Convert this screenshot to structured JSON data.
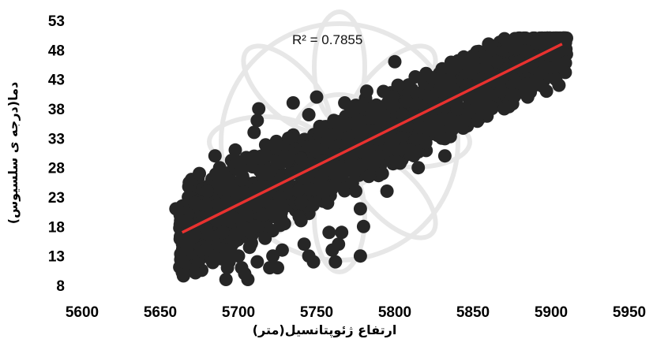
{
  "chart_data": {
    "type": "scatter",
    "title": "",
    "xlabel": "ارتفاع ژئوپتانسیل(متر)",
    "ylabel": "دما(درجه ی سلسیوس)",
    "xlim": [
      5600,
      5950
    ],
    "ylim": [
      8,
      53
    ],
    "xticks": [
      5600,
      5650,
      5700,
      5750,
      5800,
      5850,
      5900,
      5950
    ],
    "yticks": [
      8,
      13,
      18,
      23,
      28,
      33,
      38,
      43,
      48,
      53
    ],
    "grid": false,
    "legend": "none",
    "annotation": "R² = 0.7855",
    "trendline": {
      "type": "linear",
      "x": [
        5664,
        5907
      ],
      "y": [
        17,
        49
      ],
      "color": "#e8312f"
    },
    "marker_color": "#262626",
    "series": [
      {
        "values": [
          [
            5660,
            21
          ],
          [
            5663,
            19
          ],
          [
            5668,
            23
          ],
          [
            5670,
            26
          ],
          [
            5675,
            27
          ],
          [
            5672,
            22
          ],
          [
            5680,
            24
          ],
          [
            5682,
            20
          ],
          [
            5685,
            30
          ],
          [
            5688,
            28
          ],
          [
            5686,
            19
          ],
          [
            5690,
            17
          ],
          [
            5692,
            14
          ],
          [
            5694,
            12
          ],
          [
            5693,
            11
          ],
          [
            5692,
            9
          ],
          [
            5696,
            22
          ],
          [
            5698,
            31
          ],
          [
            5700,
            29
          ],
          [
            5702,
            26
          ],
          [
            5703,
            18
          ],
          [
            5700,
            13
          ],
          [
            5702,
            11
          ],
          [
            5704,
            10
          ],
          [
            5706,
            9
          ],
          [
            5708,
            15
          ],
          [
            5710,
            34
          ],
          [
            5712,
            36
          ],
          [
            5713,
            38
          ],
          [
            5715,
            23
          ],
          [
            5716,
            20
          ],
          [
            5717,
            16
          ],
          [
            5712,
            12
          ],
          [
            5720,
            11
          ],
          [
            5722,
            13
          ],
          [
            5725,
            11
          ],
          [
            5728,
            14
          ],
          [
            5730,
            30
          ],
          [
            5732,
            33
          ],
          [
            5735,
            39
          ],
          [
            5735,
            27
          ],
          [
            5738,
            24
          ],
          [
            5740,
            19
          ],
          [
            5742,
            15
          ],
          [
            5745,
            13
          ],
          [
            5748,
            12
          ],
          [
            5745,
            37
          ],
          [
            5750,
            40
          ],
          [
            5752,
            35
          ],
          [
            5755,
            29
          ],
          [
            5757,
            22
          ],
          [
            5758,
            17
          ],
          [
            5760,
            14
          ],
          [
            5762,
            12
          ],
          [
            5764,
            15
          ],
          [
            5766,
            17
          ],
          [
            5768,
            39
          ],
          [
            5770,
            33
          ],
          [
            5772,
            29
          ],
          [
            5775,
            24
          ],
          [
            5778,
            21
          ],
          [
            5780,
            18
          ],
          [
            5778,
            13
          ],
          [
            5782,
            41
          ],
          [
            5785,
            38
          ],
          [
            5787,
            33
          ],
          [
            5790,
            30
          ],
          [
            5792,
            27
          ],
          [
            5795,
            24
          ],
          [
            5800,
            46
          ],
          [
            5802,
            42
          ],
          [
            5805,
            37
          ],
          [
            5808,
            35
          ],
          [
            5810,
            31
          ],
          [
            5815,
            28
          ],
          [
            5820,
            44
          ],
          [
            5822,
            40
          ],
          [
            5825,
            36
          ],
          [
            5830,
            33
          ],
          [
            5832,
            30
          ],
          [
            5835,
            45
          ],
          [
            5838,
            41
          ],
          [
            5840,
            38
          ],
          [
            5845,
            36
          ],
          [
            5850,
            47
          ],
          [
            5855,
            43
          ],
          [
            5857,
            39
          ],
          [
            5860,
            49
          ],
          [
            5865,
            46
          ],
          [
            5868,
            41
          ],
          [
            5870,
            38
          ],
          [
            5875,
            49
          ],
          [
            5880,
            45
          ],
          [
            5883,
            42
          ],
          [
            5885,
            40
          ],
          [
            5890,
            47
          ],
          [
            5893,
            44
          ],
          [
            5897,
            41
          ],
          [
            5900,
            45
          ],
          [
            5903,
            43
          ],
          [
            5905,
            42
          ]
        ]
      }
    ]
  }
}
